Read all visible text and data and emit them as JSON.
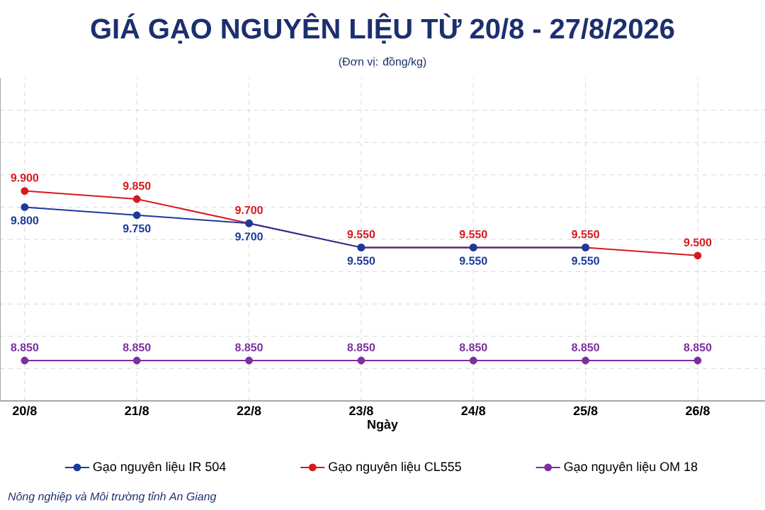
{
  "chart_data": {
    "type": "line",
    "title": "GIÁ GẠO NGUYÊN LIỆU TỪ 20/8 - 27/8/2026",
    "subtitle": "(Đơn vị: đồng/kg)",
    "xlabel": "Ngày",
    "categories": [
      "20/8",
      "21/8",
      "22/8",
      "23/8",
      "24/8",
      "25/8",
      "26/8"
    ],
    "series": [
      {
        "name": "Gạo nguyên liệu IR 504",
        "color": "#1a3a9c",
        "values": [
          9800,
          9750,
          9700,
          9550,
          9550,
          9550,
          null
        ],
        "value_labels": [
          "9.800",
          "9.750",
          "9.700",
          "9.550",
          "9.550",
          "9.550",
          null
        ]
      },
      {
        "name": "Gạo nguyên liệu CL555",
        "color": "#d7191f",
        "values": [
          9900,
          9850,
          9700,
          9550,
          9550,
          9550,
          9500
        ],
        "value_labels": [
          "9.900",
          "9.850",
          "9.700",
          "9.550",
          "9.550",
          "9.550",
          "9.500"
        ]
      },
      {
        "name": "Gạo nguyên liệu OM 18",
        "color": "#7b2fa0",
        "values": [
          8850,
          8850,
          8850,
          8850,
          8850,
          8850,
          8850
        ],
        "value_labels": [
          "8.850",
          "8.850",
          "8.850",
          "8.850",
          "8.850",
          "8.850",
          "8.850"
        ]
      }
    ],
    "ylim": [
      8600,
      10600
    ],
    "yticks": [
      {
        "value": 8800,
        "label": null
      },
      {
        "value": 9000,
        "label": null
      },
      {
        "value": 9200,
        "label": null
      },
      {
        "value": 9400,
        "label": null
      },
      {
        "value": 9600,
        "label": null
      },
      {
        "value": 9800,
        "label": null
      },
      {
        "value": 10000,
        "label": null
      },
      {
        "value": 10200,
        "label": null
      },
      {
        "value": 10400,
        "label": null
      }
    ],
    "tick_labels": "x",
    "grid": true,
    "legend": "bottom",
    "marker": "circle",
    "line_style": "solid",
    "annotations": [
      "Nông nghiệp và Môi trường tỉnh An Giang"
    ]
  }
}
